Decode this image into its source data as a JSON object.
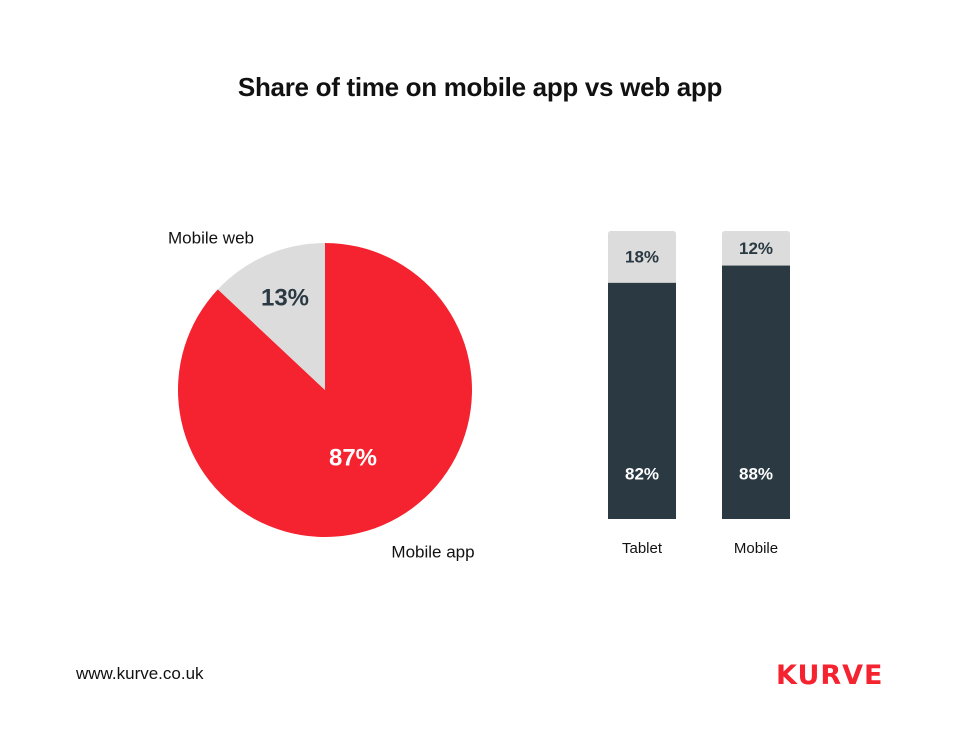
{
  "title": "Share of time on mobile app vs web app",
  "colors": {
    "accent": "#f5222f",
    "dark": "#2a3942",
    "light": "#dcdcdc",
    "text": "#111111"
  },
  "chart_data": [
    {
      "type": "pie",
      "slices": [
        {
          "label": "Mobile app",
          "value": 87,
          "value_label": "87%"
        },
        {
          "label": "Mobile web",
          "value": 13,
          "value_label": "13%"
        }
      ]
    },
    {
      "type": "bar",
      "stacked": true,
      "categories": [
        "Tablet",
        "Mobile"
      ],
      "series": [
        {
          "name": "Mobile app",
          "values": [
            82,
            88
          ],
          "value_labels": [
            "82%",
            "88%"
          ]
        },
        {
          "name": "Mobile web",
          "values": [
            18,
            12
          ],
          "value_labels": [
            "18%",
            "12%"
          ]
        }
      ],
      "ylim": [
        0,
        100
      ]
    }
  ],
  "footer": {
    "url": "www.kurve.co.uk",
    "logo": "KURVE"
  }
}
